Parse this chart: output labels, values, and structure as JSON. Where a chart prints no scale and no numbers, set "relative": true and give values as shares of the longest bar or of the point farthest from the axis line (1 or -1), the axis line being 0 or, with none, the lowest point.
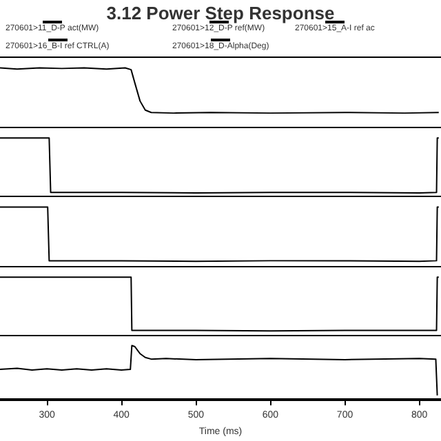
{
  "chart_data": [
    {
      "type": "line",
      "title": "3.12 Power Step Response",
      "relative": true,
      "legend": "top",
      "tick_labels": false,
      "xlim": [
        237,
        829
      ],
      "xticks": [
        300,
        400,
        500,
        600,
        700,
        800
      ],
      "series": [
        {
          "name": "270601>11_D-P act(MW)",
          "color": "#000000",
          "x": [
            237,
            260,
            290,
            320,
            350,
            380,
            405,
            413,
            418,
            425,
            432,
            440,
            470,
            520,
            600,
            700,
            780,
            826
          ],
          "values": [
            1,
            0.98,
            1,
            0.99,
            1,
            0.98,
            1,
            0.97,
            0.75,
            0.45,
            0.3,
            0.26,
            0.25,
            0.26,
            0.25,
            0.26,
            0.25,
            0.26
          ]
        }
      ]
    },
    {
      "type": "line",
      "relative": true,
      "legend": "top",
      "tick_labels": false,
      "xlim": [
        237,
        829
      ],
      "xticks": [
        300,
        400,
        500,
        600,
        700,
        800
      ],
      "series": [
        {
          "name": "270601>12_D-P ref(MW)",
          "color": "#000000",
          "x": [
            237,
            270,
            303,
            305,
            400,
            500,
            600,
            700,
            800,
            823,
            824,
            826
          ],
          "values": [
            1,
            1,
            1,
            0.08,
            0.08,
            0.07,
            0.08,
            0.08,
            0.07,
            0.08,
            1,
            1
          ]
        }
      ]
    },
    {
      "type": "line",
      "relative": true,
      "legend": "top",
      "tick_labels": false,
      "xlim": [
        237,
        829
      ],
      "xticks": [
        300,
        400,
        500,
        600,
        700,
        800
      ],
      "series": [
        {
          "name": "270601>15_A-I ref ac",
          "color": "#000000",
          "x": [
            237,
            270,
            301,
            303,
            400,
            500,
            600,
            700,
            800,
            823,
            824,
            826
          ],
          "values": [
            1,
            1,
            1,
            0.11,
            0.11,
            0.1,
            0.11,
            0.11,
            0.1,
            0.11,
            1,
            1
          ]
        }
      ]
    },
    {
      "type": "line",
      "relative": true,
      "legend": "top",
      "tick_labels": false,
      "xlim": [
        237,
        829
      ],
      "xticks": [
        300,
        400,
        500,
        600,
        700,
        800
      ],
      "series": [
        {
          "name": "270601>16_B-I ref CTRL(A)",
          "color": "#000000",
          "x": [
            237,
            300,
            380,
            413,
            414,
            500,
            600,
            700,
            800,
            823,
            824,
            826
          ],
          "values": [
            1,
            1,
            1,
            1,
            0.1,
            0.1,
            0.09,
            0.1,
            0.1,
            0.1,
            1,
            1
          ]
        }
      ]
    },
    {
      "type": "line",
      "relative": true,
      "legend": "top",
      "tick_labels": "x",
      "xlabel": "Time (ms)",
      "xlim": [
        237,
        829
      ],
      "xticks": [
        300,
        400,
        500,
        600,
        700,
        800
      ],
      "series": [
        {
          "name": "270601>18_D-Alpha(Deg)",
          "color": "#000000",
          "x": [
            237,
            260,
            280,
            300,
            320,
            340,
            360,
            380,
            400,
            412,
            414,
            418,
            425,
            432,
            440,
            460,
            500,
            600,
            700,
            800,
            822,
            824
          ],
          "values": [
            0.56,
            0.58,
            0.55,
            0.57,
            0.55,
            0.57,
            0.55,
            0.57,
            0.55,
            0.56,
            1,
            0.98,
            0.85,
            0.78,
            0.75,
            0.76,
            0.74,
            0.76,
            0.74,
            0.76,
            0.75,
            0.08
          ]
        }
      ]
    }
  ]
}
